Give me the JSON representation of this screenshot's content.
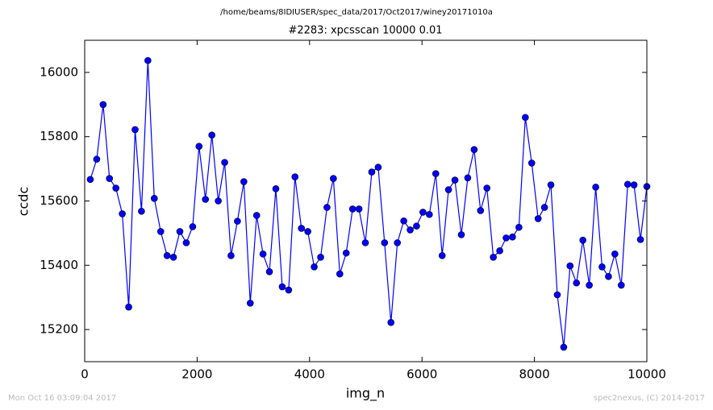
{
  "chart_data": {
    "type": "line",
    "suptitle": "/home/beams/8IDIUSER/spec_data/2017/Oct2017/winey20171010a",
    "title": "#2283: xpcsscan 10000 0.01",
    "x_label": "img_n",
    "y_label": "ccdc",
    "footer_left": "Mon Oct 16 03:09:04 2017",
    "footer_right": "spec2nexus, (C) 2014-2017",
    "color": "#0000ff",
    "marker_color": "#0000ff",
    "x": [
      100,
      214,
      328,
      441,
      555,
      669,
      783,
      897,
      1010,
      1124,
      1238,
      1352,
      1466,
      1579,
      1693,
      1807,
      1921,
      2034,
      2148,
      2262,
      2376,
      2490,
      2603,
      2717,
      2831,
      2945,
      3059,
      3172,
      3286,
      3400,
      3514,
      3628,
      3741,
      3855,
      3969,
      4083,
      4197,
      4310,
      4424,
      4538,
      4652,
      4766,
      4879,
      4993,
      5107,
      5221,
      5334,
      5448,
      5562,
      5676,
      5790,
      5903,
      6017,
      6131,
      6245,
      6359,
      6472,
      6586,
      6700,
      6814,
      6928,
      7041,
      7155,
      7269,
      7383,
      7497,
      7610,
      7724,
      7838,
      7952,
      8066,
      8179,
      8293,
      8407,
      8521,
      8634,
      8748,
      8862,
      8976,
      9090,
      9203,
      9317,
      9431,
      9545,
      9659,
      9772,
      9886,
      10000
    ],
    "values": [
      15667,
      15730,
      15900,
      15670,
      15640,
      15560,
      15270,
      15822,
      15568,
      16037,
      15608,
      15505,
      15430,
      15425,
      15505,
      15470,
      15520,
      15770,
      15605,
      15805,
      15600,
      15720,
      15430,
      15537,
      15660,
      15282,
      15555,
      15435,
      15380,
      15638,
      15333,
      15323,
      15675,
      15515,
      15505,
      15395,
      15425,
      15580,
      15670,
      15373,
      15438,
      15575,
      15575,
      15470,
      15690,
      15705,
      15470,
      15222,
      15470,
      15538,
      15510,
      15522,
      15565,
      15558,
      15685,
      15430,
      15635,
      15665,
      15495,
      15672,
      15760,
      15570,
      15640,
      15425,
      15445,
      15485,
      15488,
      15518,
      15860,
      15718,
      15545,
      15580,
      15650,
      15308,
      15145,
      15398,
      15345,
      15478,
      15338,
      15643,
      15395,
      15365,
      15435,
      15338,
      15652,
      15650,
      15480,
      15645
    ],
    "xlim": [
      0,
      10000
    ],
    "xticks": [
      0,
      2000,
      4000,
      6000,
      8000,
      10000
    ],
    "ylim": [
      15100,
      16100
    ],
    "yticks": [
      15200,
      15400,
      15600,
      15800,
      16000
    ],
    "grid": false
  }
}
